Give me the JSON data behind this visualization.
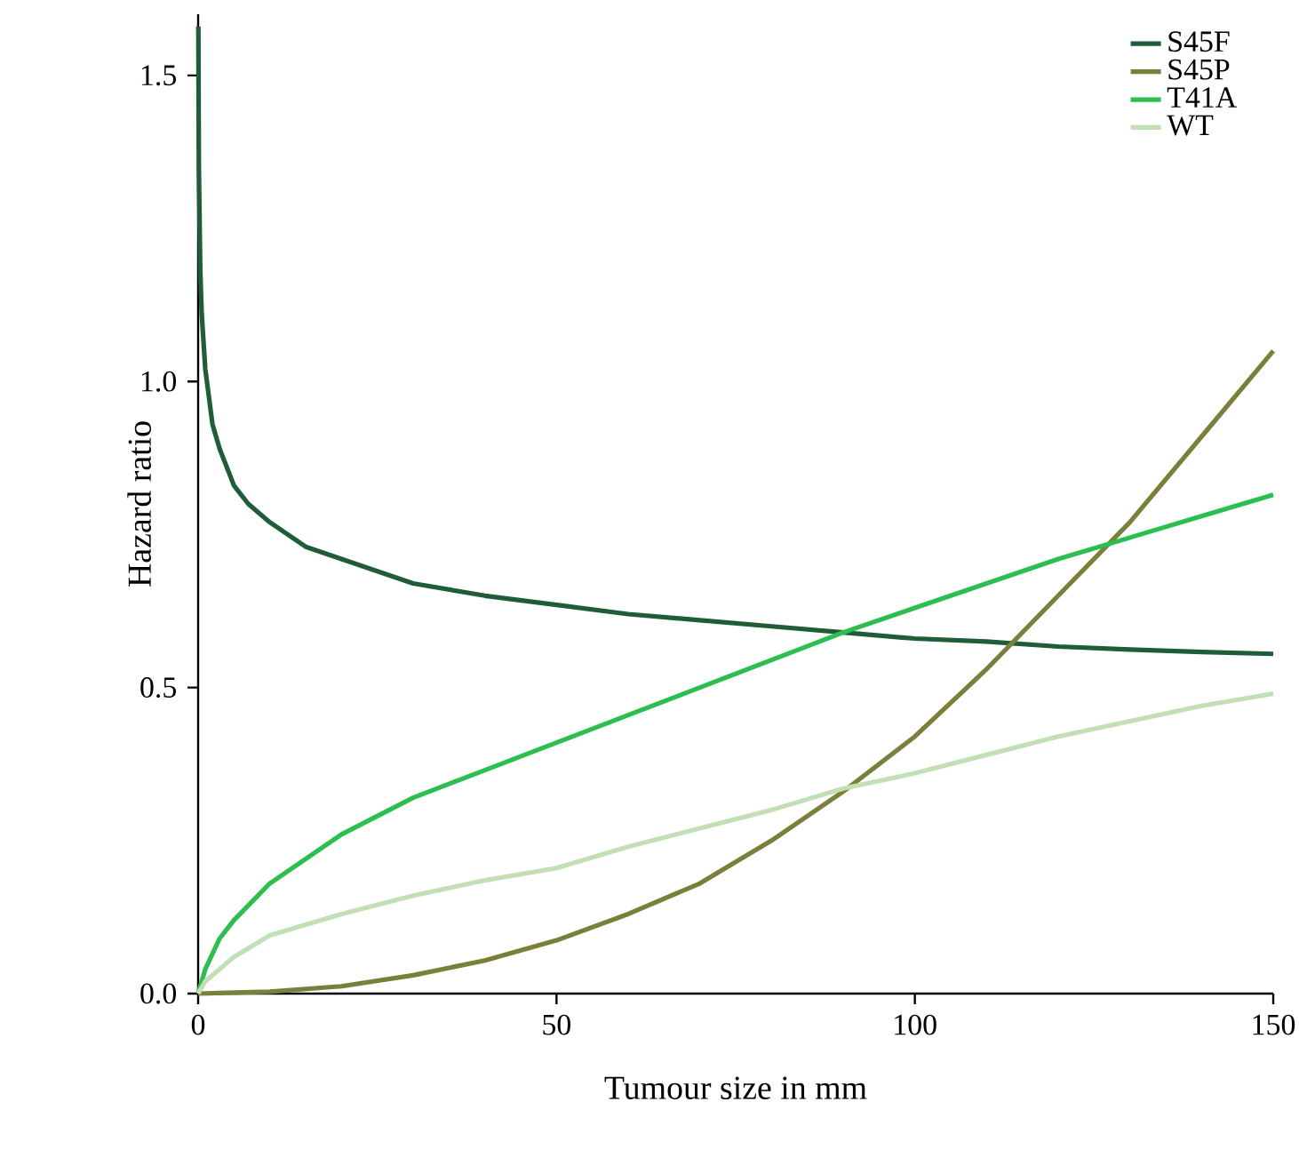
{
  "chart_data": {
    "type": "line",
    "xlabel": "Tumour size in mm",
    "ylabel": "Hazard ratio",
    "xlim": [
      0,
      150
    ],
    "ylim": [
      0,
      1.6
    ],
    "xticks": [
      0,
      50,
      100,
      150
    ],
    "yticks": [
      {
        "value": 0,
        "label": "0.0"
      },
      {
        "value": 0.5,
        "label": "0.5"
      },
      {
        "value": 1,
        "label": "1.0"
      },
      {
        "value": 1.5,
        "label": "1.5"
      }
    ],
    "grid": false,
    "legend": "top right",
    "marker": "none",
    "line_style": "solid",
    "series": [
      {
        "name": "S45F",
        "color": "#1f5c38",
        "x": [
          0.03,
          0.1,
          0.3,
          0.5,
          1,
          2,
          3,
          5,
          7,
          10,
          15,
          20,
          30,
          40,
          50,
          60,
          70,
          80,
          90,
          100,
          110,
          120,
          130,
          140,
          150
        ],
        "values": [
          1.58,
          1.35,
          1.18,
          1.11,
          1.02,
          0.93,
          0.89,
          0.83,
          0.8,
          0.77,
          0.73,
          0.71,
          0.67,
          0.65,
          0.635,
          0.62,
          0.61,
          0.6,
          0.59,
          0.58,
          0.575,
          0.567,
          0.562,
          0.558,
          0.555
        ]
      },
      {
        "name": "S45P",
        "color": "#7a7f3a",
        "x": [
          0,
          10,
          20,
          30,
          40,
          50,
          60,
          70,
          80,
          90,
          100,
          110,
          120,
          130,
          140,
          150
        ],
        "values": [
          0,
          0.003,
          0.012,
          0.03,
          0.054,
          0.087,
          0.13,
          0.18,
          0.25,
          0.33,
          0.42,
          0.53,
          0.65,
          0.77,
          0.91,
          1.05
        ]
      },
      {
        "name": "T41A",
        "color": "#2dbe50",
        "x": [
          0,
          1,
          3,
          5,
          10,
          20,
          30,
          40,
          50,
          60,
          70,
          80,
          90,
          100,
          110,
          120,
          130,
          140,
          150
        ],
        "values": [
          0,
          0.04,
          0.09,
          0.12,
          0.18,
          0.26,
          0.32,
          0.365,
          0.41,
          0.455,
          0.5,
          0.545,
          0.59,
          0.63,
          0.67,
          0.71,
          0.745,
          0.78,
          0.815
        ]
      },
      {
        "name": "WT",
        "color": "#c2dfb5",
        "x": [
          0,
          1,
          3,
          5,
          10,
          20,
          30,
          40,
          50,
          60,
          70,
          80,
          90,
          100,
          110,
          120,
          130,
          140,
          150
        ],
        "values": [
          0,
          0.02,
          0.04,
          0.06,
          0.095,
          0.13,
          0.16,
          0.185,
          0.205,
          0.24,
          0.27,
          0.3,
          0.335,
          0.36,
          0.39,
          0.42,
          0.445,
          0.47,
          0.49
        ]
      }
    ]
  }
}
